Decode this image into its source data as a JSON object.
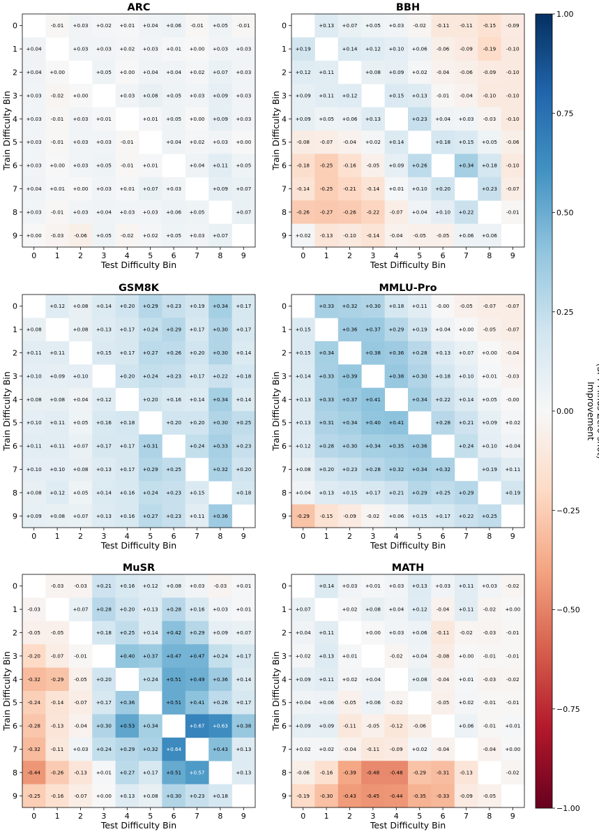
{
  "chart_data": {
    "type": "heatmap",
    "colormap": "RdBu",
    "vmin": -1.0,
    "vmax": 1.0,
    "xlabel": "Test Difficulty Bin",
    "ylabel": "Train Difficulty Bin",
    "ticks": [
      "0",
      "1",
      "2",
      "3",
      "4",
      "5",
      "6",
      "7",
      "8",
      "9"
    ],
    "colorbar": {
      "label_line1": "Improvement",
      "label_line2": "(SFT Minus Zero-shot)",
      "ticks": [
        1.0,
        0.75,
        0.5,
        0.25,
        0.0,
        -0.25,
        -0.5,
        -0.75,
        -1.0
      ],
      "tick_labels": [
        "1.00",
        "0.75",
        "0.50",
        "0.25",
        "0.00",
        "−0.25",
        "−0.50",
        "−0.75",
        "−1.00"
      ]
    },
    "panels": [
      {
        "title": "ARC",
        "values": [
          [
            null,
            -0.01,
            0.03,
            0.02,
            0.01,
            0.04,
            0.06,
            -0.01,
            0.05,
            -0.01
          ],
          [
            0.04,
            null,
            0.03,
            0.03,
            0.02,
            0.03,
            0.01,
            0.0,
            0.03,
            0.03
          ],
          [
            0.04,
            0.0,
            null,
            0.05,
            0.0,
            0.04,
            0.04,
            0.02,
            0.07,
            0.03
          ],
          [
            0.03,
            -0.02,
            0.0,
            null,
            0.03,
            0.08,
            0.05,
            0.03,
            0.09,
            0.03
          ],
          [
            0.03,
            -0.01,
            0.03,
            0.01,
            null,
            0.01,
            0.05,
            0.0,
            0.09,
            0.03
          ],
          [
            0.03,
            -0.01,
            0.03,
            0.03,
            -0.01,
            null,
            0.04,
            0.02,
            0.03,
            0.0
          ],
          [
            0.03,
            0.0,
            0.03,
            0.05,
            -0.01,
            0.01,
            null,
            0.04,
            0.11,
            0.05
          ],
          [
            0.04,
            0.01,
            0.0,
            0.03,
            0.01,
            0.07,
            0.03,
            null,
            0.09,
            0.07
          ],
          [
            0.03,
            -0.01,
            0.03,
            0.04,
            0.03,
            0.03,
            0.06,
            0.05,
            null,
            0.07
          ],
          [
            0.0,
            -0.03,
            -0.06,
            0.05,
            -0.02,
            0.02,
            0.05,
            0.03,
            0.07,
            null
          ]
        ]
      },
      {
        "title": "BBH",
        "values": [
          [
            null,
            0.13,
            0.07,
            0.05,
            0.03,
            -0.02,
            -0.11,
            -0.11,
            -0.15,
            -0.09
          ],
          [
            0.19,
            null,
            0.14,
            0.12,
            0.1,
            0.06,
            -0.06,
            -0.09,
            -0.19,
            -0.1
          ],
          [
            0.12,
            0.11,
            null,
            0.08,
            0.09,
            0.02,
            -0.04,
            -0.06,
            -0.09,
            -0.1
          ],
          [
            0.09,
            0.11,
            0.12,
            null,
            0.15,
            0.13,
            -0.01,
            -0.04,
            -0.1,
            -0.1
          ],
          [
            0.09,
            0.05,
            0.06,
            0.13,
            null,
            0.23,
            0.04,
            0.03,
            -0.03,
            -0.1
          ],
          [
            -0.08,
            -0.07,
            -0.04,
            0.02,
            0.14,
            null,
            0.18,
            0.15,
            0.05,
            -0.06
          ],
          [
            -0.18,
            -0.25,
            -0.16,
            -0.05,
            0.09,
            0.26,
            null,
            0.34,
            0.18,
            -0.1
          ],
          [
            -0.14,
            -0.25,
            -0.21,
            -0.14,
            0.01,
            0.1,
            0.2,
            null,
            0.23,
            -0.07
          ],
          [
            -0.26,
            -0.27,
            -0.26,
            -0.22,
            -0.07,
            0.04,
            0.1,
            0.22,
            null,
            -0.01
          ],
          [
            0.02,
            -0.13,
            -0.1,
            -0.14,
            -0.04,
            -0.05,
            -0.05,
            0.06,
            0.06,
            null
          ]
        ]
      },
      {
        "title": "GSM8K",
        "values": [
          [
            null,
            0.12,
            0.08,
            0.14,
            0.2,
            0.29,
            0.23,
            0.19,
            0.34,
            0.17
          ],
          [
            0.08,
            null,
            0.08,
            0.13,
            0.17,
            0.24,
            0.29,
            0.17,
            0.3,
            0.17
          ],
          [
            0.11,
            0.11,
            null,
            0.15,
            0.17,
            0.27,
            0.26,
            0.2,
            0.3,
            0.14
          ],
          [
            0.1,
            0.09,
            0.1,
            null,
            0.2,
            0.24,
            0.23,
            0.17,
            0.22,
            0.18
          ],
          [
            0.08,
            0.08,
            0.04,
            0.12,
            null,
            0.2,
            0.16,
            0.14,
            0.34,
            0.14
          ],
          [
            0.1,
            0.11,
            0.05,
            0.16,
            0.18,
            null,
            0.2,
            0.2,
            0.3,
            0.25
          ],
          [
            0.11,
            0.11,
            0.07,
            0.17,
            0.17,
            0.31,
            null,
            0.24,
            0.33,
            0.23
          ],
          [
            0.1,
            0.1,
            0.08,
            0.13,
            0.17,
            0.29,
            0.25,
            null,
            0.32,
            0.2
          ],
          [
            0.08,
            0.12,
            0.05,
            0.14,
            0.16,
            0.24,
            0.23,
            0.15,
            null,
            0.18
          ],
          [
            0.09,
            0.08,
            0.07,
            0.13,
            0.16,
            0.27,
            0.23,
            0.11,
            0.36,
            null
          ]
        ]
      },
      {
        "title": "MMLU-Pro",
        "values": [
          [
            null,
            0.33,
            0.32,
            0.3,
            0.18,
            0.11,
            -0.0,
            -0.05,
            -0.07,
            -0.07
          ],
          [
            0.15,
            null,
            0.36,
            0.37,
            0.29,
            0.19,
            0.04,
            0.0,
            -0.05,
            -0.07
          ],
          [
            0.15,
            0.34,
            null,
            0.38,
            0.36,
            0.28,
            0.13,
            0.07,
            0.0,
            -0.04
          ],
          [
            0.14,
            0.33,
            0.39,
            null,
            0.38,
            0.3,
            0.18,
            0.1,
            0.01,
            -0.03
          ],
          [
            0.13,
            0.33,
            0.37,
            0.41,
            null,
            0.34,
            0.22,
            0.14,
            0.05,
            -0.0
          ],
          [
            0.13,
            0.31,
            0.34,
            0.4,
            0.41,
            null,
            0.28,
            0.21,
            0.09,
            0.02
          ],
          [
            0.12,
            0.28,
            0.3,
            0.34,
            0.35,
            0.36,
            null,
            0.24,
            0.1,
            0.04
          ],
          [
            0.08,
            0.2,
            0.23,
            0.28,
            0.32,
            0.34,
            0.32,
            null,
            0.19,
            0.11
          ],
          [
            0.04,
            0.13,
            0.15,
            0.17,
            0.21,
            0.29,
            0.25,
            0.29,
            null,
            0.19
          ],
          [
            -0.29,
            -0.15,
            -0.09,
            -0.02,
            0.06,
            0.15,
            0.17,
            0.22,
            0.25,
            null
          ]
        ]
      },
      {
        "title": "MuSR",
        "values": [
          [
            null,
            -0.03,
            -0.03,
            0.21,
            0.16,
            0.12,
            0.08,
            0.03,
            -0.03,
            0.01
          ],
          [
            -0.03,
            null,
            0.07,
            0.28,
            0.2,
            0.13,
            0.28,
            0.16,
            0.03,
            0.01
          ],
          [
            -0.05,
            -0.05,
            null,
            0.18,
            0.25,
            0.14,
            0.42,
            0.29,
            0.09,
            0.07
          ],
          [
            -0.2,
            -0.07,
            -0.01,
            null,
            0.4,
            0.37,
            0.47,
            0.47,
            0.24,
            0.17
          ],
          [
            -0.32,
            -0.29,
            -0.05,
            0.2,
            null,
            0.24,
            0.51,
            0.49,
            0.36,
            0.14
          ],
          [
            -0.24,
            -0.14,
            -0.07,
            0.17,
            0.36,
            null,
            0.51,
            0.41,
            0.26,
            0.17
          ],
          [
            -0.28,
            -0.13,
            -0.04,
            0.3,
            0.53,
            0.34,
            null,
            0.67,
            0.63,
            0.38
          ],
          [
            -0.32,
            -0.11,
            0.03,
            0.24,
            0.29,
            0.32,
            0.64,
            null,
            0.43,
            0.13
          ],
          [
            -0.44,
            -0.26,
            -0.13,
            0.01,
            0.27,
            0.17,
            0.51,
            0.57,
            null,
            0.13
          ],
          [
            -0.25,
            -0.16,
            -0.07,
            0.0,
            0.13,
            0.08,
            0.3,
            0.23,
            0.18,
            null
          ]
        ]
      },
      {
        "title": "MATH",
        "values": [
          [
            null,
            0.14,
            0.03,
            0.01,
            0.03,
            0.13,
            0.03,
            0.11,
            0.03,
            -0.02
          ],
          [
            0.07,
            null,
            0.02,
            0.08,
            0.04,
            0.12,
            -0.04,
            0.11,
            -0.02,
            0.0
          ],
          [
            0.04,
            0.11,
            null,
            0.0,
            0.03,
            0.06,
            -0.11,
            -0.02,
            -0.03,
            -0.01
          ],
          [
            0.02,
            0.13,
            0.01,
            null,
            -0.02,
            0.04,
            -0.08,
            0.0,
            -0.01,
            -0.01
          ],
          [
            0.09,
            0.11,
            0.02,
            0.04,
            null,
            0.08,
            -0.04,
            0.01,
            -0.03,
            -0.02
          ],
          [
            0.04,
            0.06,
            -0.05,
            0.06,
            -0.02,
            null,
            -0.05,
            0.02,
            -0.01,
            -0.01
          ],
          [
            0.09,
            0.09,
            -0.11,
            -0.05,
            -0.12,
            -0.06,
            null,
            0.06,
            -0.01,
            0.01
          ],
          [
            0.02,
            0.02,
            -0.04,
            -0.11,
            -0.09,
            0.02,
            -0.04,
            null,
            -0.04,
            0.0
          ],
          [
            -0.06,
            -0.16,
            -0.39,
            -0.48,
            -0.48,
            -0.29,
            -0.31,
            -0.13,
            null,
            -0.02
          ],
          [
            -0.19,
            -0.3,
            -0.43,
            -0.45,
            -0.44,
            -0.35,
            -0.33,
            -0.09,
            -0.05,
            null
          ]
        ]
      }
    ]
  }
}
